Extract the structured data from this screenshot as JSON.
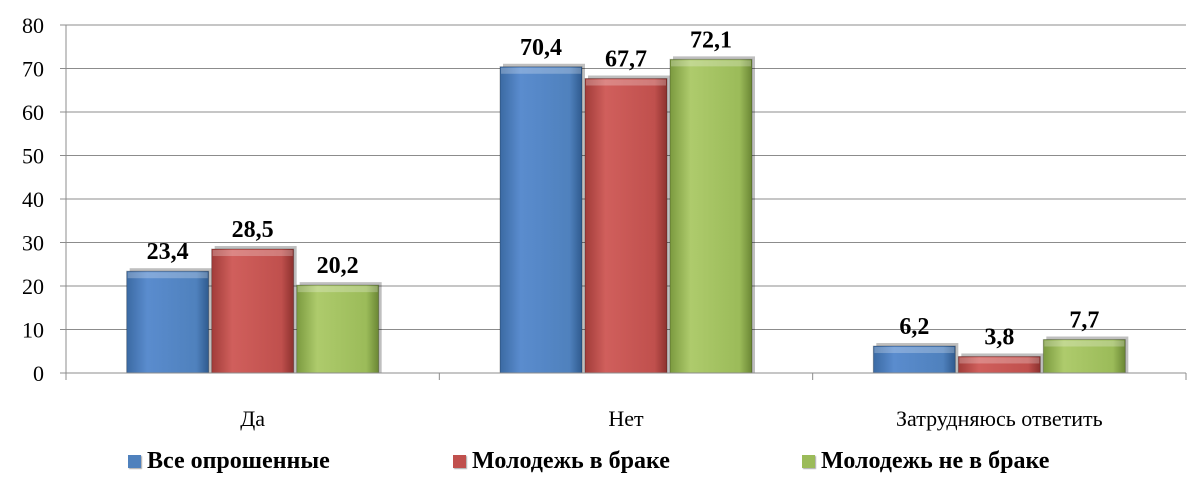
{
  "chart_data": {
    "type": "bar",
    "categories": [
      "Да",
      "Нет",
      "Затрудняюсь ответить"
    ],
    "series": [
      {
        "name": "Все опрошенные",
        "values": [
          23.4,
          70.4,
          6.2
        ],
        "labels": [
          "23,4",
          "70,4",
          "6,2"
        ],
        "color": "#4F81BD"
      },
      {
        "name": "Молодежь в браке",
        "values": [
          28.5,
          67.7,
          3.8
        ],
        "labels": [
          "28,5",
          "67,7",
          "3,8"
        ],
        "color": "#C0504D"
      },
      {
        "name": "Молодежь не в браке",
        "values": [
          20.2,
          72.1,
          7.7
        ],
        "labels": [
          "20,2",
          "72,1",
          "7,7"
        ],
        "color": "#9BBB59"
      }
    ],
    "yticks": [
      "0",
      "10",
      "20",
      "30",
      "40",
      "50",
      "60",
      "70",
      "80"
    ],
    "ylim": [
      0,
      80
    ],
    "grid": true,
    "legend_position": "bottom",
    "title": "",
    "xlabel": "",
    "ylabel": ""
  }
}
